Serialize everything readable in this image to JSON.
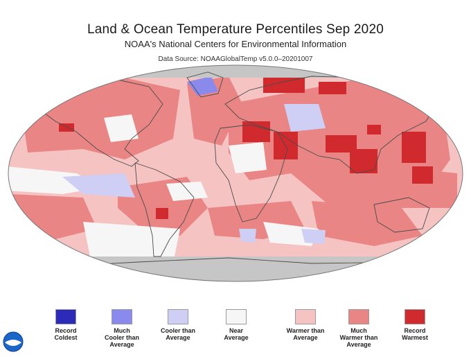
{
  "header": {
    "title": "Land & Ocean Temperature Percentiles Sep 2020",
    "subtitle": "NOAA's National Centers for Environmental Information",
    "source": "Data Source: NOAAGlobalTemp v5.0.0–20201007"
  },
  "colors": {
    "record_coldest": "#2b2bb8",
    "much_cooler": "#8a8aec",
    "cooler": "#cfcff5",
    "near_average": "#f6f6f6",
    "warmer": "#f6c3c3",
    "much_warmer": "#ea8585",
    "record_warmest": "#d12a2e",
    "no_data": "#c6c6c6",
    "land_outline": "#4a4a4a"
  },
  "legend": [
    {
      "label": "Record\nColdest",
      "color": "#2b2bb8"
    },
    {
      "label": "Much\nCooler than\nAverage",
      "color": "#8a8aec"
    },
    {
      "label": "Cooler than\nAverage",
      "color": "#cfcff5"
    },
    {
      "label": "Near\nAverage",
      "color": "#f6f6f6"
    },
    {
      "label": "Warmer than\nAverage",
      "color": "#f6c3c3"
    },
    {
      "label": "Much\nWarmer than\nAverage",
      "color": "#ea8585"
    },
    {
      "label": "Record\nWarmest",
      "color": "#d12a2e"
    }
  ],
  "logo": {
    "icon": "noaa-logo-icon"
  }
}
